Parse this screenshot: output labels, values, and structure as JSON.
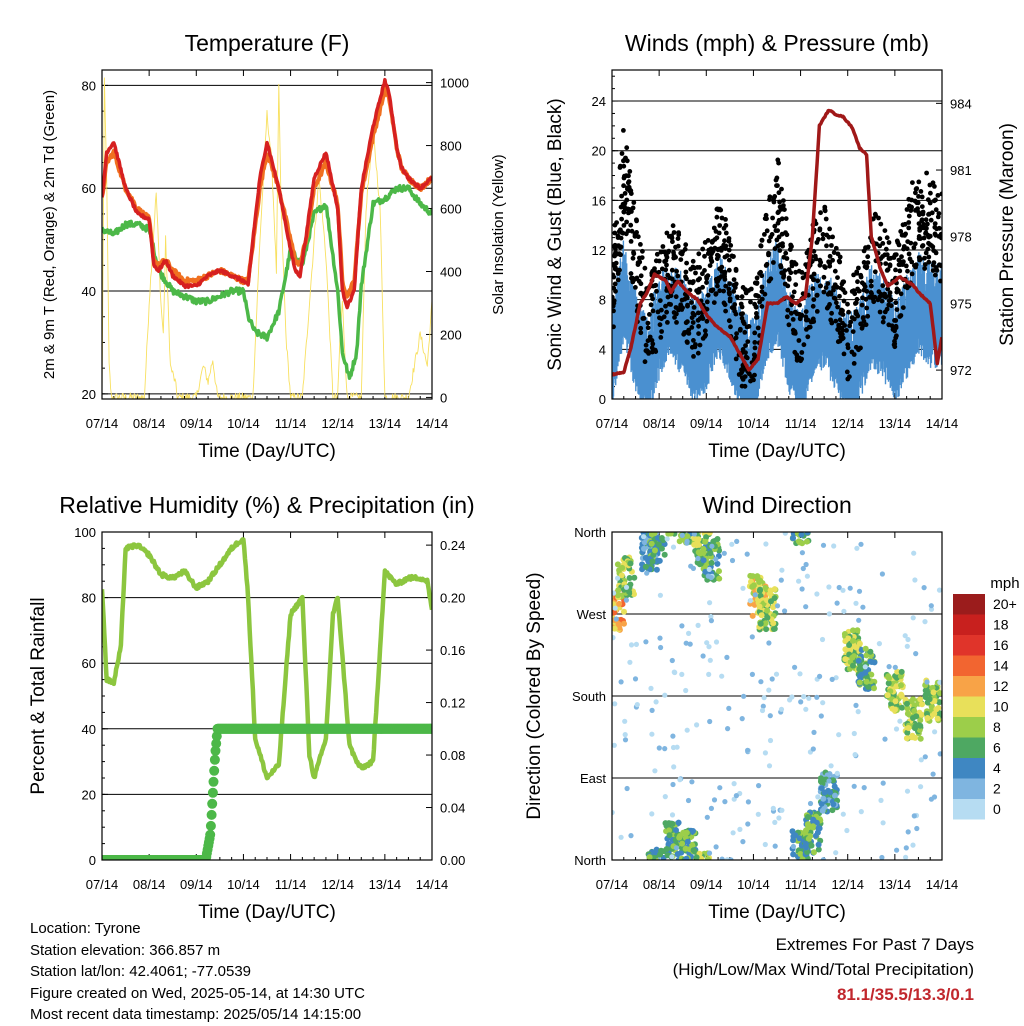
{
  "chart_data": [
    {
      "type": "line",
      "title": "Temperature (F)",
      "xlabel": "Time (Day/UTC)",
      "ylabel": "2m & 9m T (Red, Orange) & 2m Td (Green)",
      "y2label": "Solar Insolation (Yellow)",
      "x_ticks": [
        "07/14",
        "08/14",
        "09/14",
        "10/14",
        "11/14",
        "12/14",
        "13/14",
        "14/14"
      ],
      "ylim": [
        19,
        83
      ],
      "y_ticks": [
        20,
        40,
        60,
        80
      ],
      "y2lim": [
        -5,
        1040
      ],
      "y2_ticks": [
        0,
        200,
        400,
        600,
        800,
        1000
      ],
      "grid": true,
      "series": [
        {
          "name": "2m T",
          "color": "#d62020",
          "x": [
            0,
            0.1,
            0.25,
            0.5,
            0.75,
            1,
            1.1,
            1.2,
            1.35,
            1.5,
            1.75,
            2,
            2.25,
            2.5,
            2.75,
            3,
            3.1,
            3.2,
            3.35,
            3.5,
            3.75,
            4,
            4.1,
            4.2,
            4.35,
            4.5,
            4.75,
            5,
            5.1,
            5.2,
            5.35,
            5.5,
            5.75,
            6,
            6.1,
            6.25,
            6.35,
            6.5,
            6.75,
            7
          ],
          "y": [
            58,
            67,
            69,
            60,
            55,
            54,
            45,
            44,
            46,
            43,
            41,
            41,
            43,
            44,
            43,
            42,
            41,
            50,
            62,
            69,
            60,
            48,
            44,
            43,
            52,
            62,
            67,
            56,
            40,
            37,
            40,
            60,
            72,
            81,
            78,
            68,
            64,
            62,
            60,
            62
          ]
        },
        {
          "name": "9m T",
          "color": "#f07020",
          "x": [
            0,
            0.1,
            0.25,
            0.5,
            0.75,
            1,
            1.1,
            1.2,
            1.35,
            1.5,
            1.75,
            2,
            2.25,
            2.5,
            2.75,
            3,
            3.1,
            3.2,
            3.35,
            3.5,
            3.75,
            4,
            4.1,
            4.2,
            4.35,
            4.5,
            4.75,
            5,
            5.1,
            5.2,
            5.35,
            5.5,
            5.75,
            6,
            6.1,
            6.25,
            6.35,
            6.5,
            6.75,
            7
          ],
          "y": [
            58,
            65,
            67,
            60,
            56,
            54,
            46,
            45,
            46,
            44,
            42,
            42,
            43,
            44,
            43,
            42,
            42,
            49,
            60,
            67,
            60,
            50,
            46,
            45,
            51,
            60,
            65,
            57,
            42,
            39,
            42,
            59,
            70,
            79,
            77,
            68,
            64,
            62,
            60,
            62
          ]
        },
        {
          "name": "2m Td",
          "color": "#4cb848",
          "x": [
            0,
            0.25,
            0.5,
            0.75,
            1,
            1.2,
            1.5,
            1.75,
            2,
            2.25,
            2.5,
            2.75,
            3,
            3.1,
            3.25,
            3.5,
            3.75,
            4,
            4.25,
            4.5,
            4.75,
            5,
            5.1,
            5.25,
            5.4,
            5.5,
            5.75,
            6,
            6.25,
            6.5,
            6.75,
            7
          ],
          "y": [
            52,
            51,
            53,
            53,
            52,
            44,
            40,
            39,
            38,
            38,
            39,
            40,
            40,
            35,
            32,
            31,
            36,
            48,
            45,
            55,
            57,
            40,
            28,
            23,
            28,
            41,
            57,
            58,
            60,
            60,
            57,
            55
          ]
        },
        {
          "name": "Solar Insolation",
          "color": "#f8e060",
          "axis": "y2",
          "x": [
            0,
            0.05,
            0.1,
            0.15,
            0.2,
            0.3,
            0.6,
            0.75,
            0.9,
            1,
            1.15,
            1.25,
            1.3,
            1.35,
            1.45,
            1.55,
            1.6,
            1.75,
            2,
            2.15,
            2.25,
            2.35,
            2.45,
            2.6,
            2.75,
            3,
            3.2,
            3.35,
            3.5,
            3.6,
            3.7,
            3.75,
            3.8,
            3.9,
            4,
            4.1,
            4.25,
            4.5,
            4.6,
            4.75,
            4.9,
            5,
            5.05,
            5.1,
            5.2,
            5.4,
            5.5,
            5.6,
            5.75,
            5.9,
            6,
            6.1,
            6.25,
            6.5,
            6.75,
            6.9,
            7
          ],
          "y": [
            0,
            1000,
            700,
            100,
            0,
            0,
            0,
            0,
            0,
            300,
            650,
            300,
            200,
            500,
            100,
            50,
            0,
            0,
            0,
            100,
            50,
            120,
            0,
            0,
            0,
            0,
            0,
            500,
            900,
            750,
            400,
            980,
            600,
            200,
            0,
            0,
            0,
            500,
            700,
            450,
            0,
            0,
            200,
            300,
            0,
            0,
            0,
            600,
            850,
            600,
            0,
            0,
            0,
            0,
            200,
            100,
            300
          ]
        }
      ]
    },
    {
      "type": "scatter",
      "title": "Winds (mph) & Pressure (mb)",
      "xlabel": "Time (Day/UTC)",
      "ylabel": "Sonic Wind & Gust (Blue, Black)",
      "y2label": "Station Pressure (Maroon)",
      "x_ticks": [
        "07/14",
        "08/14",
        "09/14",
        "10/14",
        "11/14",
        "12/14",
        "13/14",
        "14/14"
      ],
      "ylim": [
        0,
        26.5
      ],
      "y_ticks": [
        0,
        4,
        8,
        12,
        16,
        20,
        24
      ],
      "y2lim": [
        970.7,
        985.5
      ],
      "y2_ticks": [
        972,
        975,
        978,
        981,
        984
      ],
      "grid": true,
      "series": [
        {
          "name": "Sonic Wind",
          "color": "#4a90d0",
          "x": [
            0,
            0.25,
            0.5,
            0.75,
            1,
            1.25,
            1.5,
            1.75,
            2,
            2.25,
            2.5,
            2.75,
            3,
            3.25,
            3.5,
            3.75,
            4,
            4.25,
            4.5,
            4.75,
            5,
            5.25,
            5.5,
            5.75,
            6,
            6.25,
            6.5,
            6.75,
            7
          ],
          "y": [
            4,
            9,
            5,
            3,
            6,
            8,
            6,
            4,
            5,
            8,
            6,
            3,
            3,
            7,
            9,
            5,
            3,
            6,
            7,
            5,
            3,
            4,
            7,
            6,
            4,
            6,
            8,
            7,
            7
          ]
        },
        {
          "name": "Gust",
          "color": "#000000",
          "x": [
            0,
            0.25,
            0.5,
            0.75,
            1,
            1.25,
            1.5,
            1.75,
            2,
            2.25,
            2.5,
            2.75,
            3,
            3.25,
            3.5,
            3.75,
            4,
            4.25,
            4.5,
            4.75,
            5,
            5.25,
            5.5,
            5.75,
            6,
            6.25,
            6.5,
            6.75,
            7
          ],
          "y": [
            8,
            18,
            11,
            6,
            8,
            11,
            9,
            7,
            9,
            13,
            9,
            5,
            5,
            11,
            16,
            9,
            6,
            10,
            12,
            9,
            5,
            7,
            12,
            10,
            8,
            12,
            15,
            14,
            13
          ]
        },
        {
          "name": "Station Pressure",
          "color": "#a01818",
          "axis": "y2",
          "x": [
            0,
            0.25,
            0.4,
            0.6,
            0.75,
            0.9,
            1,
            1.15,
            1.25,
            1.4,
            1.6,
            1.8,
            2,
            2.2,
            2.5,
            2.75,
            2.9,
            3.1,
            3.3,
            3.5,
            3.7,
            3.9,
            4.1,
            4.25,
            4.4,
            4.6,
            4.75,
            4.9,
            5.1,
            5.25,
            5.4,
            5.5,
            5.7,
            5.85,
            6,
            6.1,
            6.25,
            6.4,
            6.5,
            6.75,
            6.9,
            7
          ],
          "y": [
            971.8,
            971.9,
            973,
            975,
            975.5,
            976.3,
            976.2,
            976,
            975.5,
            976,
            975.5,
            975.2,
            974.5,
            974,
            973.5,
            972.6,
            972,
            972.5,
            975,
            975,
            975.3,
            975,
            975.3,
            978,
            983,
            983.7,
            983.5,
            983.4,
            982.9,
            982,
            981.7,
            978,
            976.5,
            975.8,
            976,
            976.2,
            976,
            975.8,
            975.5,
            975,
            972.3,
            973.5
          ]
        }
      ]
    },
    {
      "type": "line",
      "title": "Relative Humidity (%) & Precipitation (in)",
      "xlabel": "Time (Day/UTC)",
      "ylabel": "Percent & Total Rainfall",
      "x_ticks": [
        "07/14",
        "08/14",
        "09/14",
        "10/14",
        "11/14",
        "12/14",
        "13/14",
        "14/14"
      ],
      "ylim": [
        0,
        100
      ],
      "y_ticks": [
        0,
        20,
        40,
        60,
        80,
        100
      ],
      "y2lim": [
        0,
        0.25
      ],
      "y2_ticks": [
        "0.00",
        "0.04",
        "0.08",
        "0.12",
        "0.16",
        "0.20",
        "0.24"
      ],
      "grid": true,
      "series": [
        {
          "name": "Relative Humidity",
          "color": "#8cc63f",
          "x": [
            0,
            0.1,
            0.25,
            0.4,
            0.5,
            0.75,
            1,
            1.25,
            1.5,
            1.75,
            2,
            2.25,
            2.5,
            2.75,
            2.9,
            3,
            3.1,
            3.25,
            3.5,
            3.75,
            4,
            4.25,
            4.4,
            4.5,
            4.75,
            4.9,
            5,
            5.25,
            5.4,
            5.5,
            5.75,
            6,
            6.25,
            6.5,
            6.75,
            6.9,
            7
          ],
          "y": [
            83,
            55,
            54,
            65,
            95,
            96,
            93,
            87,
            86,
            88,
            83,
            85,
            90,
            95,
            97,
            98,
            80,
            37,
            25,
            29,
            75,
            80,
            32,
            25,
            37,
            75,
            80,
            35,
            30,
            28,
            30,
            88,
            84,
            86,
            86,
            85,
            76
          ]
        },
        {
          "name": "Total Precipitation",
          "color": "#4cb848",
          "axis": "y2",
          "x": [
            0,
            2.2,
            2.3,
            2.35,
            2.4,
            2.45,
            7
          ],
          "y": [
            0,
            0,
            0.02,
            0.05,
            0.08,
            0.1,
            0.1
          ]
        }
      ]
    },
    {
      "type": "scatter",
      "title": "Wind Direction",
      "xlabel": "Time (Day/UTC)",
      "ylabel": "Direction (Colored By Speed)",
      "x_ticks": [
        "07/14",
        "08/14",
        "09/14",
        "10/14",
        "11/14",
        "12/14",
        "13/14",
        "14/14"
      ],
      "y_ticks": [
        "North",
        "East",
        "South",
        "West",
        "North"
      ],
      "ylim": [
        0,
        360
      ],
      "grid": true,
      "colorbar": {
        "title": "mph",
        "labels": [
          "20+",
          "18",
          "16",
          "14",
          "12",
          "10",
          "8",
          "6",
          "4",
          "2",
          "0"
        ],
        "colors": [
          "#9b1c1c",
          "#c8201e",
          "#e0342a",
          "#f26530",
          "#f8a347",
          "#e8e05a",
          "#9cce4a",
          "#4ea862",
          "#3f87c2",
          "#7fb5e0",
          "#b6dcf2"
        ]
      },
      "points": [
        {
          "x": 0.1,
          "y": 275,
          "speed": 12
        },
        {
          "x": 0.3,
          "y": 310,
          "speed": 8
        },
        {
          "x": 0.8,
          "y": 340,
          "speed": 4
        },
        {
          "x": 0.95,
          "y": 350,
          "speed": 6
        },
        {
          "x": 1.3,
          "y": 20,
          "speed": 6
        },
        {
          "x": 1.6,
          "y": 10,
          "speed": 6
        },
        {
          "x": 1.9,
          "y": 345,
          "speed": 8
        },
        {
          "x": 2.1,
          "y": 330,
          "speed": 6
        },
        {
          "x": 3.1,
          "y": 290,
          "speed": 10
        },
        {
          "x": 3.3,
          "y": 275,
          "speed": 8
        },
        {
          "x": 4,
          "y": 10,
          "speed": 6
        },
        {
          "x": 4.25,
          "y": 30,
          "speed": 6
        },
        {
          "x": 4.6,
          "y": 75,
          "speed": 4
        },
        {
          "x": 5.1,
          "y": 230,
          "speed": 8
        },
        {
          "x": 5.4,
          "y": 210,
          "speed": 6
        },
        {
          "x": 6.0,
          "y": 185,
          "speed": 8
        },
        {
          "x": 6.4,
          "y": 155,
          "speed": 8
        },
        {
          "x": 6.8,
          "y": 175,
          "speed": 8
        }
      ]
    }
  ],
  "info": {
    "location": "Location: Tyrone",
    "elevation": "Station elevation: 366.857 m",
    "latlon": "Station lat/lon: 42.4061; -77.0539",
    "created": "Figure created on Wed, 2025-05-14, at 14:30 UTC",
    "recent": "Most recent data timestamp: 2025/05/14 14:15:00"
  },
  "extremes": {
    "line1": "Extremes For Past 7 Days",
    "line2": "(High/Low/Max Wind/Total Precipitation)",
    "values": "81.1/35.5/13.3/0.1"
  }
}
